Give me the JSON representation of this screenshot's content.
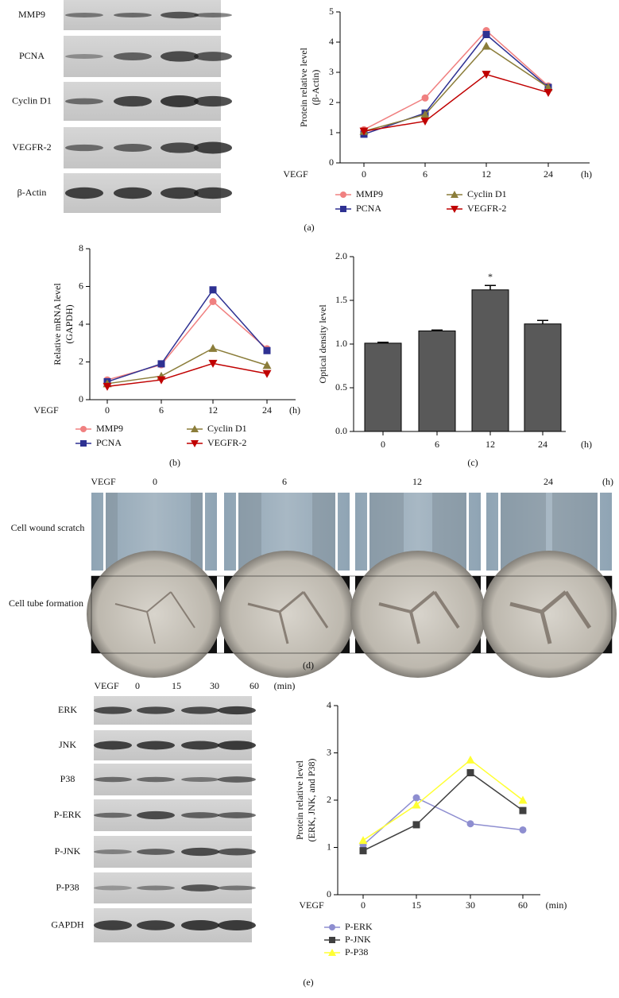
{
  "blots_a": {
    "labels": [
      "MMP9",
      "PCNA",
      "Cyclin D1",
      "VEGFR-2",
      "β-Actin"
    ]
  },
  "panel_d": {
    "header": {
      "label": "VEGF",
      "times": [
        "0",
        "6",
        "12",
        "24"
      ],
      "unit": "(h)"
    },
    "rows": [
      "Cell wound scratch",
      "Cell tube formation"
    ],
    "caption": "(d)"
  },
  "blots_e": {
    "header": {
      "label": "VEGF",
      "times": [
        "0",
        "15",
        "30",
        "60"
      ],
      "unit": "(min)"
    },
    "labels": [
      "ERK",
      "JNK",
      "P38",
      "P-ERK",
      "P-JNK",
      "P-P38",
      "GAPDH"
    ]
  },
  "chart_data": [
    {
      "type": "line",
      "caption": "(a)",
      "x_label": "VEGF",
      "x_unit": "(h)",
      "y_label": [
        "Protein relative level",
        "(β-Actin)"
      ],
      "categories": [
        "0",
        "6",
        "12",
        "24"
      ],
      "ylim": [
        0,
        5
      ],
      "yticks": [
        0,
        1,
        2,
        3,
        4,
        5
      ],
      "series": [
        {
          "name": "MMP9",
          "color": "#f08080",
          "marker": "circle",
          "values": [
            1.1,
            2.15,
            4.38,
            2.55
          ]
        },
        {
          "name": "PCNA",
          "color": "#2e3192",
          "marker": "square",
          "values": [
            0.95,
            1.65,
            4.25,
            2.5
          ]
        },
        {
          "name": "Cyclin D1",
          "color": "#8b7d3a",
          "marker": "triangle",
          "values": [
            1.05,
            1.6,
            3.87,
            2.5
          ]
        },
        {
          "name": "VEGFR-2",
          "color": "#c00000",
          "marker": "triangle-down",
          "values": [
            1.05,
            1.38,
            2.93,
            2.33
          ]
        }
      ]
    },
    {
      "type": "line",
      "caption": "(b)",
      "x_label": "VEGF",
      "x_unit": "(h)",
      "y_label": [
        "Relative mRNA level",
        "(GAPDH)"
      ],
      "categories": [
        "0",
        "6",
        "12",
        "24"
      ],
      "ylim": [
        0,
        8
      ],
      "yticks": [
        0,
        2,
        4,
        6,
        8
      ],
      "series": [
        {
          "name": "MMP9",
          "color": "#f08080",
          "marker": "circle",
          "values": [
            1.05,
            1.85,
            5.2,
            2.7
          ]
        },
        {
          "name": "PCNA",
          "color": "#2e3192",
          "marker": "square",
          "values": [
            0.95,
            1.9,
            5.82,
            2.6
          ]
        },
        {
          "name": "Cyclin D1",
          "color": "#8b7d3a",
          "marker": "triangle",
          "values": [
            0.85,
            1.25,
            2.72,
            1.82
          ]
        },
        {
          "name": "VEGFR-2",
          "color": "#c00000",
          "marker": "triangle-down",
          "values": [
            0.7,
            1.05,
            1.92,
            1.38
          ]
        }
      ]
    },
    {
      "type": "bar",
      "caption": "(c)",
      "x_unit": "(h)",
      "y_label": [
        "Optical density level"
      ],
      "categories": [
        "0",
        "6",
        "12",
        "24"
      ],
      "color": "#595959",
      "values": [
        1.01,
        1.15,
        1.62,
        1.23
      ],
      "errors": [
        0.01,
        0.01,
        0.05,
        0.04
      ],
      "annotations": [
        {
          "x": "12",
          "text": "*"
        }
      ],
      "ylim": [
        0,
        2
      ],
      "yticks": [
        {
          "value": 0,
          "label": "0.0"
        },
        {
          "value": 0.5,
          "label": "0.5"
        },
        {
          "value": 1,
          "label": "1.0"
        },
        {
          "value": 1.5,
          "label": "1.5"
        },
        {
          "value": 2,
          "label": "2.0"
        }
      ]
    },
    {
      "type": "line",
      "caption": "(e)",
      "x_label": "VEGF",
      "x_unit": "(min)",
      "y_label": [
        "Protein relative level",
        "(ERK, JNK, and P38)"
      ],
      "categories": [
        "0",
        "15",
        "30",
        "60"
      ],
      "ylim": [
        0,
        4
      ],
      "yticks": [
        0,
        1,
        2,
        3,
        4
      ],
      "series": [
        {
          "name": "P-ERK",
          "color": "#8e8ed0",
          "marker": "circle",
          "values": [
            1.05,
            2.05,
            1.5,
            1.37
          ]
        },
        {
          "name": "P-JNK",
          "color": "#404040",
          "marker": "square",
          "values": [
            0.93,
            1.48,
            2.58,
            1.78
          ]
        },
        {
          "name": "P-P38",
          "color": "#ffff33",
          "marker": "triangle",
          "values": [
            1.15,
            1.9,
            2.85,
            2.0
          ]
        }
      ]
    }
  ]
}
